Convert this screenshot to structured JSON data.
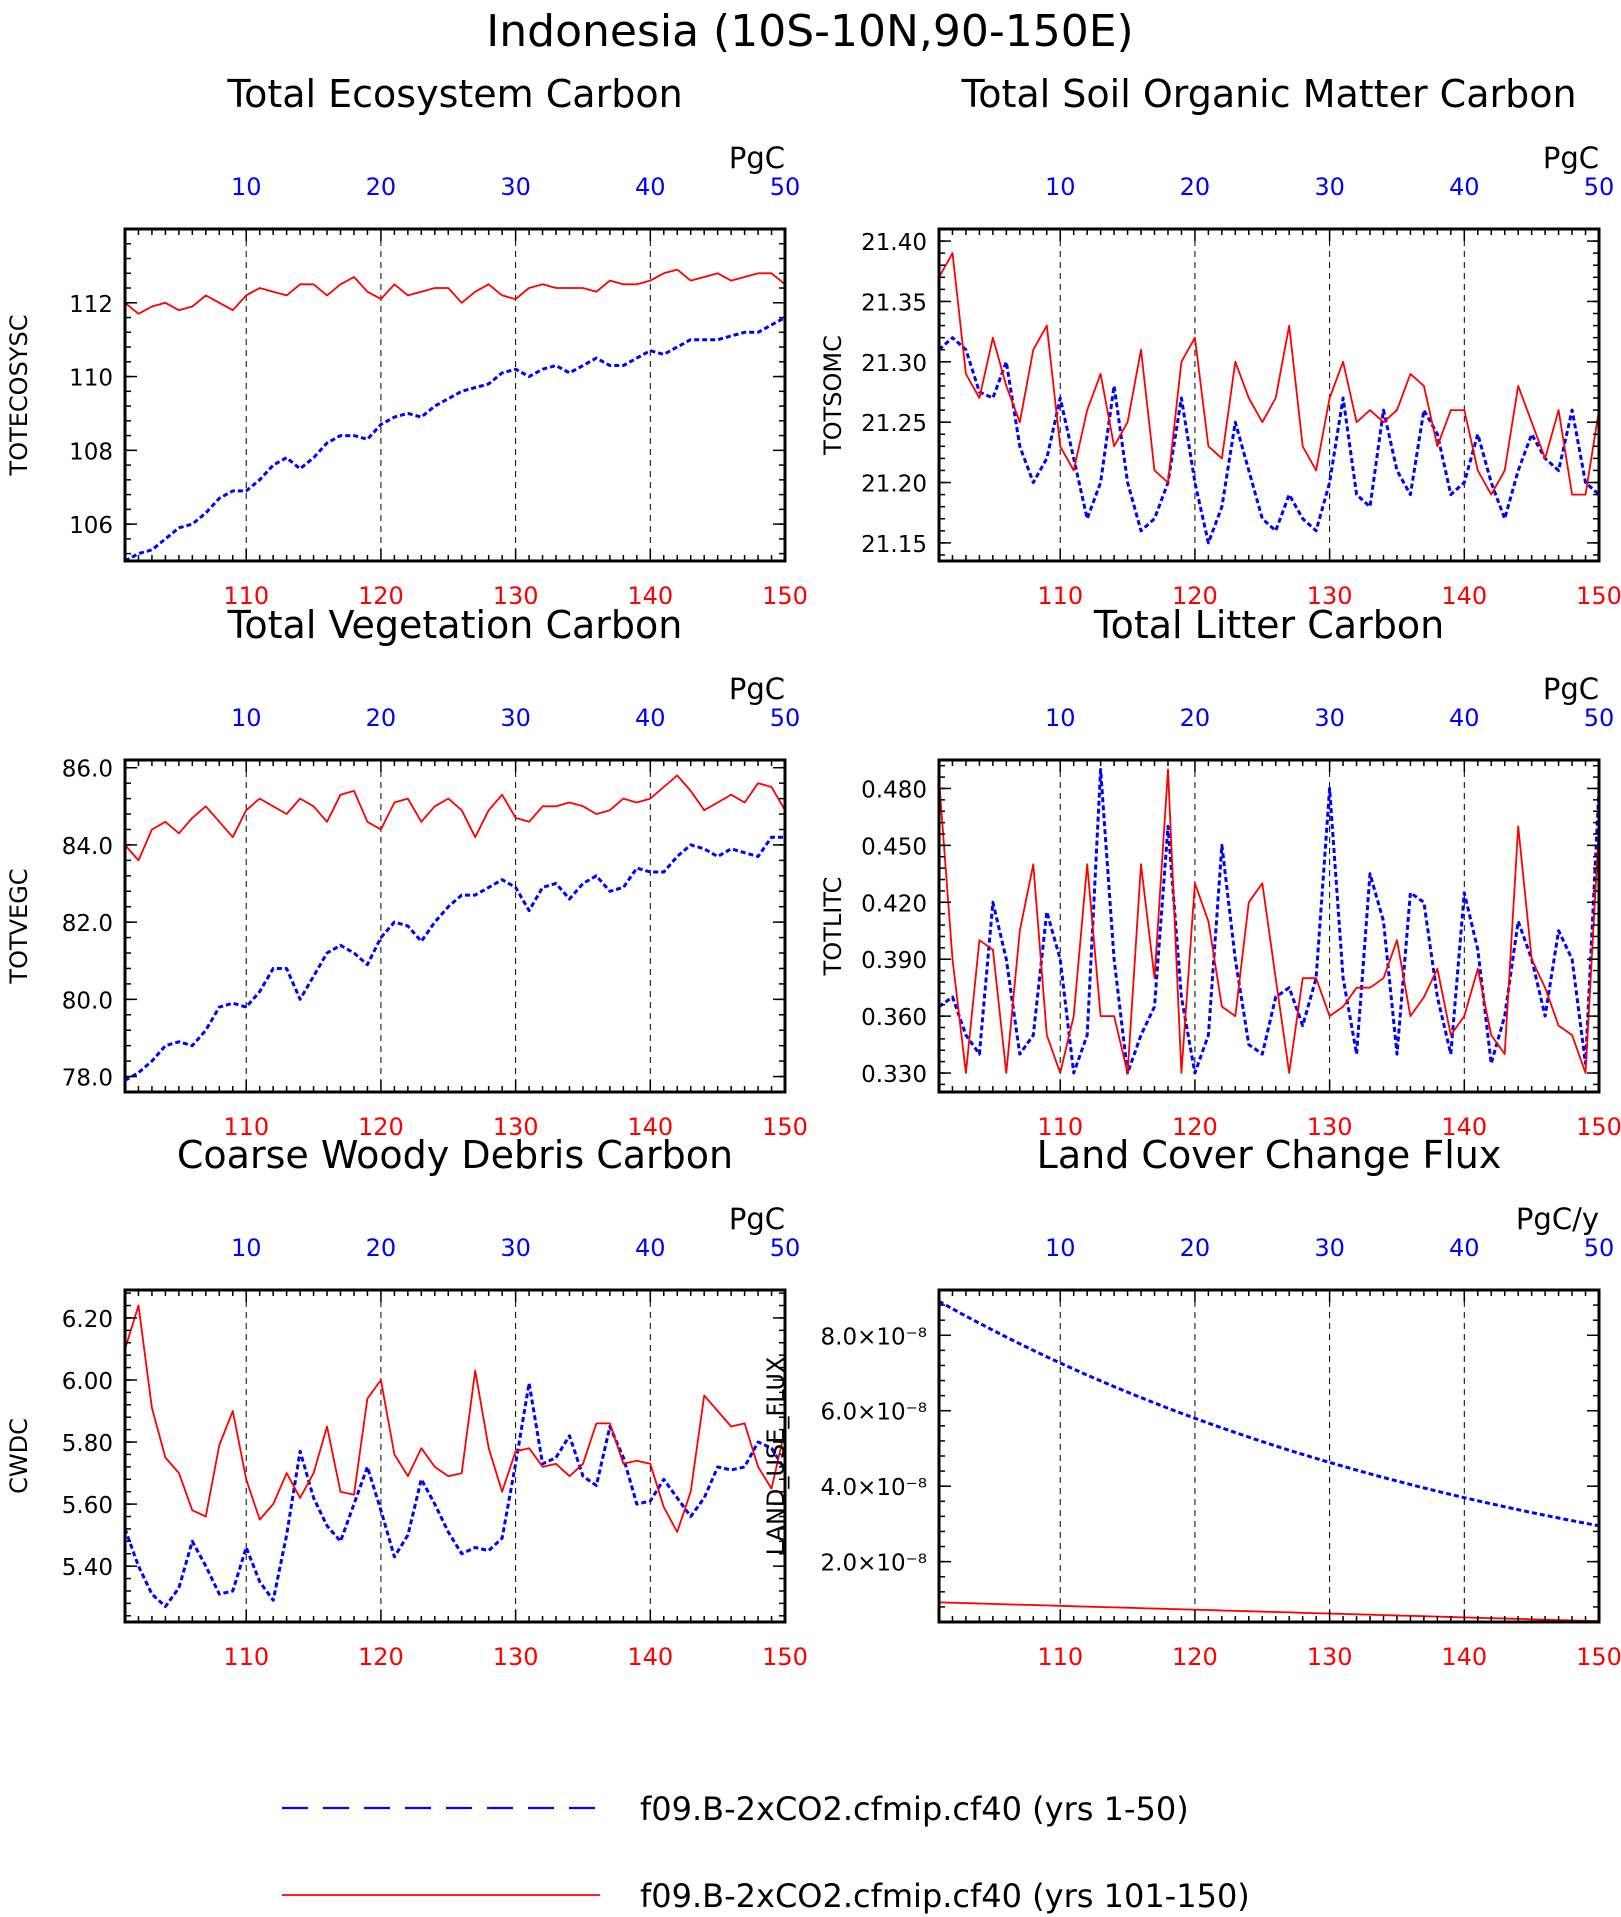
{
  "page_title": "Indonesia (10S-10N,90-150E)",
  "colors": {
    "run1": "#0000ff",
    "run2": "#ff0000",
    "axis": "#000000"
  },
  "legend": {
    "items": [
      {
        "label": "f09.B-2xCO2.cfmip.cf40 (yrs 1-50)",
        "color": "#0000ff",
        "style": "dashed"
      },
      {
        "label": "f09.B-2xCO2.cfmip.cf40 (yrs 101-150)",
        "color": "#ff0000",
        "style": "solid"
      }
    ]
  },
  "chart_data": [
    {
      "type": "line",
      "title": "Total Ecosystem Carbon",
      "ylabel": "TOTECOSYSC",
      "units": "PgC",
      "ylim": [
        105,
        114
      ],
      "yticks": [
        106,
        108,
        110,
        112
      ],
      "ytick_labels": [
        "106",
        "108",
        "110",
        "112"
      ],
      "x_bottom": {
        "range": [
          101,
          150
        ],
        "ticks": [
          110,
          120,
          130,
          140,
          150
        ],
        "tick_labels": [
          "110",
          "120",
          "130",
          "140",
          "150"
        ]
      },
      "x_top": {
        "range": [
          1,
          50
        ],
        "ticks": [
          10,
          20,
          30,
          40,
          50
        ],
        "tick_labels": [
          "10",
          "20",
          "30",
          "40",
          "50"
        ]
      },
      "series": [
        {
          "values": [
            105.0,
            105.2,
            105.3,
            105.6,
            105.9,
            106.0,
            106.3,
            106.7,
            106.9,
            106.9,
            107.2,
            107.6,
            107.8,
            107.5,
            107.8,
            108.2,
            108.4,
            108.4,
            108.3,
            108.7,
            108.9,
            109.0,
            108.9,
            109.2,
            109.4,
            109.6,
            109.7,
            109.8,
            110.1,
            110.2,
            110.0,
            110.2,
            110.3,
            110.1,
            110.3,
            110.5,
            110.3,
            110.3,
            110.5,
            110.7,
            110.6,
            110.8,
            111.0,
            111.0,
            111.0,
            111.1,
            111.2,
            111.2,
            111.4,
            111.6
          ]
        },
        {
          "values": [
            112.0,
            111.7,
            111.9,
            112.0,
            111.8,
            111.9,
            112.2,
            112.0,
            111.8,
            112.2,
            112.4,
            112.3,
            112.2,
            112.5,
            112.5,
            112.2,
            112.5,
            112.7,
            112.3,
            112.1,
            112.5,
            112.2,
            112.3,
            112.4,
            112.4,
            112.0,
            112.3,
            112.5,
            112.2,
            112.1,
            112.4,
            112.5,
            112.4,
            112.4,
            112.4,
            112.3,
            112.6,
            112.5,
            112.5,
            112.6,
            112.8,
            112.9,
            112.6,
            112.7,
            112.8,
            112.6,
            112.7,
            112.8,
            112.8,
            112.5
          ]
        }
      ]
    },
    {
      "type": "line",
      "title": "Total Soil Organic Matter Carbon",
      "ylabel": "TOTSOMC",
      "units": "PgC",
      "ylim": [
        21.135,
        21.41
      ],
      "yticks": [
        21.15,
        21.2,
        21.25,
        21.3,
        21.35,
        21.4
      ],
      "ytick_labels": [
        "21.15",
        "21.20",
        "21.25",
        "21.30",
        "21.35",
        "21.40"
      ],
      "x_bottom": {
        "range": [
          101,
          150
        ],
        "ticks": [
          110,
          120,
          130,
          140,
          150
        ],
        "tick_labels": [
          "110",
          "120",
          "130",
          "140",
          "150"
        ]
      },
      "x_top": {
        "range": [
          1,
          50
        ],
        "ticks": [
          10,
          20,
          30,
          40,
          50
        ],
        "tick_labels": [
          "10",
          "20",
          "30",
          "40",
          "50"
        ]
      },
      "series": [
        {
          "values": [
            21.31,
            21.32,
            21.31,
            21.275,
            21.27,
            21.3,
            21.23,
            21.2,
            21.22,
            21.27,
            21.22,
            21.17,
            21.2,
            21.28,
            21.2,
            21.16,
            21.17,
            21.2,
            21.27,
            21.2,
            21.15,
            21.18,
            21.25,
            21.21,
            21.17,
            21.16,
            21.19,
            21.17,
            21.16,
            21.2,
            21.27,
            21.19,
            21.18,
            21.26,
            21.21,
            21.19,
            21.26,
            21.24,
            21.19,
            21.2,
            21.24,
            21.2,
            21.17,
            21.21,
            21.24,
            21.22,
            21.21,
            21.26,
            21.2,
            21.19
          ]
        },
        {
          "values": [
            21.37,
            21.39,
            21.29,
            21.27,
            21.32,
            21.28,
            21.25,
            21.31,
            21.33,
            21.23,
            21.21,
            21.26,
            21.29,
            21.23,
            21.25,
            21.31,
            21.21,
            21.2,
            21.3,
            21.32,
            21.23,
            21.22,
            21.3,
            21.27,
            21.25,
            21.27,
            21.33,
            21.23,
            21.21,
            21.27,
            21.3,
            21.25,
            21.26,
            21.25,
            21.26,
            21.29,
            21.28,
            21.23,
            21.26,
            21.26,
            21.21,
            21.19,
            21.21,
            21.28,
            21.25,
            21.22,
            21.26,
            21.19,
            21.19,
            21.26
          ]
        }
      ]
    },
    {
      "type": "line",
      "title": "Total Vegetation Carbon",
      "ylabel": "TOTVEGC",
      "units": "PgC",
      "ylim": [
        77.6,
        86.2
      ],
      "yticks": [
        78,
        80,
        82,
        84,
        86
      ],
      "ytick_labels": [
        "78.0",
        "80.0",
        "82.0",
        "84.0",
        "86.0"
      ],
      "x_bottom": {
        "range": [
          101,
          150
        ],
        "ticks": [
          110,
          120,
          130,
          140,
          150
        ],
        "tick_labels": [
          "110",
          "120",
          "130",
          "140",
          "150"
        ]
      },
      "x_top": {
        "range": [
          1,
          50
        ],
        "ticks": [
          10,
          20,
          30,
          40,
          50
        ],
        "tick_labels": [
          "10",
          "20",
          "30",
          "40",
          "50"
        ]
      },
      "series": [
        {
          "values": [
            77.9,
            78.1,
            78.4,
            78.8,
            78.9,
            78.8,
            79.2,
            79.8,
            79.9,
            79.8,
            80.2,
            80.8,
            80.8,
            80.0,
            80.6,
            81.2,
            81.4,
            81.2,
            80.9,
            81.6,
            82.0,
            81.9,
            81.5,
            82.0,
            82.4,
            82.7,
            82.7,
            82.9,
            83.1,
            82.9,
            82.3,
            82.9,
            83.0,
            82.6,
            83.0,
            83.2,
            82.8,
            82.9,
            83.4,
            83.3,
            83.3,
            83.7,
            84.0,
            83.9,
            83.7,
            83.9,
            83.8,
            83.7,
            84.2,
            84.2
          ]
        },
        {
          "values": [
            84.0,
            83.6,
            84.4,
            84.6,
            84.3,
            84.7,
            85.0,
            84.6,
            84.2,
            84.9,
            85.2,
            85.0,
            84.8,
            85.2,
            85.0,
            84.6,
            85.3,
            85.4,
            84.6,
            84.4,
            85.1,
            85.2,
            84.6,
            85.0,
            85.2,
            84.9,
            84.2,
            84.9,
            85.3,
            84.7,
            84.6,
            85.0,
            85.0,
            85.1,
            85.0,
            84.8,
            84.9,
            85.2,
            85.1,
            85.2,
            85.5,
            85.8,
            85.4,
            84.9,
            85.1,
            85.3,
            85.1,
            85.6,
            85.5,
            84.9
          ]
        }
      ]
    },
    {
      "type": "line",
      "title": "Total Litter Carbon",
      "ylabel": "TOTLITC",
      "units": "PgC",
      "ylim": [
        0.32,
        0.495
      ],
      "yticks": [
        0.33,
        0.36,
        0.39,
        0.42,
        0.45,
        0.48
      ],
      "ytick_labels": [
        "0.330",
        "0.360",
        "0.390",
        "0.420",
        "0.450",
        "0.480"
      ],
      "x_bottom": {
        "range": [
          101,
          150
        ],
        "ticks": [
          110,
          120,
          130,
          140,
          150
        ],
        "tick_labels": [
          "110",
          "120",
          "130",
          "140",
          "150"
        ]
      },
      "x_top": {
        "range": [
          1,
          50
        ],
        "ticks": [
          10,
          20,
          30,
          40,
          50
        ],
        "tick_labels": [
          "10",
          "20",
          "30",
          "40",
          "50"
        ]
      },
      "series": [
        {
          "values": [
            0.365,
            0.37,
            0.35,
            0.34,
            0.42,
            0.39,
            0.34,
            0.35,
            0.415,
            0.39,
            0.33,
            0.35,
            0.49,
            0.39,
            0.33,
            0.35,
            0.365,
            0.46,
            0.37,
            0.33,
            0.35,
            0.45,
            0.39,
            0.345,
            0.34,
            0.37,
            0.375,
            0.355,
            0.38,
            0.48,
            0.38,
            0.34,
            0.435,
            0.41,
            0.34,
            0.425,
            0.42,
            0.37,
            0.34,
            0.425,
            0.395,
            0.335,
            0.36,
            0.41,
            0.39,
            0.36,
            0.405,
            0.39,
            0.335,
            0.48
          ]
        },
        {
          "values": [
            0.485,
            0.39,
            0.33,
            0.4,
            0.395,
            0.33,
            0.405,
            0.44,
            0.35,
            0.33,
            0.36,
            0.44,
            0.36,
            0.36,
            0.33,
            0.44,
            0.38,
            0.49,
            0.33,
            0.43,
            0.41,
            0.365,
            0.36,
            0.42,
            0.43,
            0.38,
            0.33,
            0.38,
            0.38,
            0.36,
            0.365,
            0.375,
            0.375,
            0.38,
            0.4,
            0.36,
            0.37,
            0.385,
            0.35,
            0.36,
            0.385,
            0.35,
            0.34,
            0.46,
            0.39,
            0.375,
            0.355,
            0.35,
            0.33,
            0.46
          ]
        }
      ]
    },
    {
      "type": "line",
      "title": "Coarse Woody Debris Carbon",
      "ylabel": "CWDC",
      "units": "PgC",
      "ylim": [
        5.22,
        6.29
      ],
      "yticks": [
        5.4,
        5.6,
        5.8,
        6.0,
        6.2
      ],
      "ytick_labels": [
        "5.40",
        "5.60",
        "5.80",
        "6.00",
        "6.20"
      ],
      "x_bottom": {
        "range": [
          101,
          150
        ],
        "ticks": [
          110,
          120,
          130,
          140,
          150
        ],
        "tick_labels": [
          "110",
          "120",
          "130",
          "140",
          "150"
        ]
      },
      "x_top": {
        "range": [
          1,
          50
        ],
        "ticks": [
          10,
          20,
          30,
          40,
          50
        ],
        "tick_labels": [
          "10",
          "20",
          "30",
          "40",
          "50"
        ]
      },
      "series": [
        {
          "values": [
            5.52,
            5.4,
            5.31,
            5.27,
            5.33,
            5.48,
            5.4,
            5.31,
            5.32,
            5.46,
            5.35,
            5.29,
            5.5,
            5.77,
            5.62,
            5.53,
            5.48,
            5.6,
            5.72,
            5.58,
            5.43,
            5.5,
            5.68,
            5.6,
            5.51,
            5.44,
            5.46,
            5.45,
            5.49,
            5.73,
            5.99,
            5.73,
            5.75,
            5.82,
            5.69,
            5.66,
            5.85,
            5.75,
            5.6,
            5.61,
            5.68,
            5.62,
            5.56,
            5.62,
            5.72,
            5.71,
            5.72,
            5.8,
            5.78,
            5.71
          ]
        },
        {
          "values": [
            6.1,
            6.24,
            5.91,
            5.75,
            5.7,
            5.58,
            5.56,
            5.79,
            5.9,
            5.68,
            5.55,
            5.6,
            5.7,
            5.62,
            5.7,
            5.85,
            5.64,
            5.63,
            5.94,
            6.0,
            5.76,
            5.69,
            5.78,
            5.72,
            5.69,
            5.7,
            6.03,
            5.78,
            5.64,
            5.77,
            5.78,
            5.72,
            5.73,
            5.69,
            5.73,
            5.86,
            5.86,
            5.73,
            5.74,
            5.73,
            5.59,
            5.51,
            5.64,
            5.95,
            5.9,
            5.85,
            5.86,
            5.72,
            5.65,
            5.84
          ]
        }
      ]
    },
    {
      "type": "line",
      "title": "Land Cover Change Flux",
      "ylabel": "LAND_USE_FLUX",
      "units": "PgC/y",
      "ylim": [
        4e-09,
        9.2e-08
      ],
      "yticks": [
        2e-08,
        4e-08,
        6e-08,
        8e-08
      ],
      "ytick_labels": [
        "2.0×10⁻⁸",
        "4.0×10⁻⁸",
        "6.0×10⁻⁸",
        "8.0×10⁻⁸"
      ],
      "x_bottom": {
        "range": [
          101,
          150
        ],
        "ticks": [
          110,
          120,
          130,
          140,
          150
        ],
        "tick_labels": [
          "110",
          "120",
          "130",
          "140",
          "150"
        ]
      },
      "x_top": {
        "range": [
          1,
          50
        ],
        "ticks": [
          10,
          20,
          30,
          40,
          50
        ],
        "tick_labels": [
          "10",
          "20",
          "30",
          "40",
          "50"
        ]
      },
      "series": [
        {
          "curve": "exponential",
          "start": 8.9e-08,
          "end": 2.95e-08
        },
        {
          "curve": "linear",
          "start": 9.2e-09,
          "end": 4.2e-09
        }
      ]
    }
  ]
}
